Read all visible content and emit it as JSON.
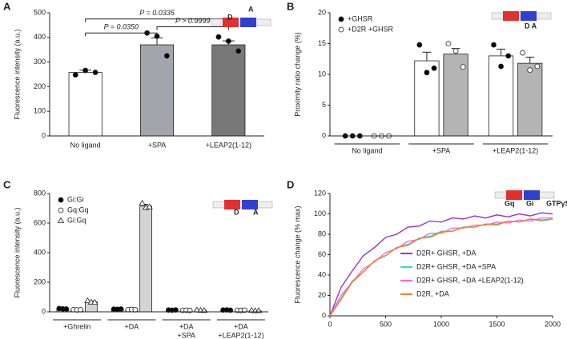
{
  "chart_data": [
    {
      "panel": "A",
      "type": "bar",
      "categories": [
        "No ligand",
        "+SPA",
        "+LEAP2(1-12)"
      ],
      "values": [
        258,
        370,
        370
      ],
      "errors": [
        9,
        28,
        16
      ],
      "points": [
        [
          248,
          266,
          258
        ],
        [
          418,
          405,
          325
        ],
        [
          402,
          385,
          345
        ]
      ],
      "colors": [
        "#ffffff",
        "#a4a4ac",
        "#787878"
      ],
      "marker_fill": "#000000",
      "ylabel": "Fluorescence intensity (a.u.)",
      "ylim": [
        0,
        500
      ],
      "yticks": [
        0,
        100,
        200,
        300,
        400,
        500
      ],
      "annotations": [
        "P = 0.0350",
        "P = 0.0335",
        "P > 0.9999"
      ],
      "inset_labels": [
        "D",
        "A"
      ]
    },
    {
      "panel": "B",
      "type": "bar",
      "categories": [
        "No ligand",
        "+SPA",
        "+LEAP2(1-12)"
      ],
      "series": [
        {
          "name": "+GHSR",
          "color": "#ffffff",
          "marker_fill": "#000000",
          "values": [
            0,
            12.2,
            13.0
          ],
          "errors": [
            0,
            1.4,
            1.1
          ],
          "points": [
            [
              0,
              0,
              0
            ],
            [
              14.8,
              10.3,
              11.0
            ],
            [
              14.8,
              11.3,
              13.0
            ]
          ]
        },
        {
          "name": "+D2R +GHSR",
          "color": "#b4b4b4",
          "marker_fill": "#ffffff",
          "values": [
            0,
            13.3,
            11.8
          ],
          "errors": [
            0,
            0.9,
            1.0
          ],
          "points": [
            [
              0,
              0,
              0
            ],
            [
              15.0,
              13.8,
              11.2
            ],
            [
              13.5,
              10.7,
              11.3
            ]
          ]
        }
      ],
      "ylabel": "Proximity ratio change (%)",
      "ylim": [
        0,
        20
      ],
      "yticks": [
        0,
        5,
        10,
        15,
        20
      ],
      "inset_labels": [
        "D A"
      ]
    },
    {
      "panel": "C",
      "type": "bar",
      "categories": [
        [
          "+Ghrelin"
        ],
        [
          "+DA"
        ],
        [
          "+DA",
          "+SPA"
        ],
        [
          "+DA",
          "+LEAP2(1-12)"
        ]
      ],
      "series": [
        {
          "name": "Gi:Gi",
          "color": "#ffffff",
          "marker": "circle",
          "marker_fill": "#000000",
          "values": [
            20,
            18,
            12,
            12
          ],
          "points": [
            [
              22,
              20,
              19
            ],
            [
              18,
              17,
              19
            ],
            [
              12,
              11,
              13
            ],
            [
              12,
              13,
              11
            ]
          ]
        },
        {
          "name": "Gq:Gq",
          "color": "#ffffff",
          "marker": "circle",
          "marker_fill": "#ffffff",
          "values": [
            14,
            15,
            10,
            10
          ],
          "points": [
            [
              15,
              13,
              14
            ],
            [
              15,
              16,
              14
            ],
            [
              10,
              11,
              9
            ],
            [
              10,
              9,
              11
            ]
          ]
        },
        {
          "name": "Gi:Gq",
          "color": "#d4d4d4",
          "marker": "triangle",
          "marker_fill": "#ffffff",
          "values": [
            68,
            715,
            10,
            8
          ],
          "errors": [
            5,
            12,
            2,
            2
          ],
          "points": [
            [
              75,
              66,
              64
            ],
            [
              735,
              705,
              710
            ],
            [
              12,
              10,
              9
            ],
            [
              10,
              7,
              8
            ]
          ]
        }
      ],
      "ylabel": "Fluorescence intensity (a.u.)",
      "ylim": [
        0,
        800
      ],
      "yticks": [
        0,
        200,
        400,
        600,
        800
      ],
      "inset_labels": [
        "D",
        "A"
      ]
    },
    {
      "panel": "D",
      "type": "line",
      "x": [
        0,
        100,
        200,
        300,
        400,
        500,
        600,
        700,
        800,
        900,
        1000,
        1100,
        1200,
        1300,
        1400,
        1500,
        1600,
        1700,
        1800,
        1900,
        2000
      ],
      "series": [
        {
          "name": "D2R+ GHSR, +DA",
          "color": "#9933cc",
          "values": [
            0,
            28,
            44,
            59,
            67,
            77,
            80,
            87,
            88,
            93,
            92,
            96,
            95,
            98,
            96,
            99,
            97,
            100,
            98,
            101,
            100
          ]
        },
        {
          "name": "D2R+ GHSR, +DA +SPA",
          "color": "#33e0b0",
          "values": [
            0,
            17,
            34,
            43,
            54,
            59,
            67,
            70,
            76,
            78,
            83,
            83,
            87,
            87,
            90,
            90,
            93,
            92,
            95,
            93,
            95
          ]
        },
        {
          "name": "D2R+ GHSR, +DA +LEAP2(1-12)",
          "color": "#ff66dd",
          "values": [
            0,
            20,
            33,
            46,
            53,
            62,
            66,
            73,
            75,
            81,
            81,
            86,
            86,
            89,
            89,
            92,
            91,
            94,
            93,
            96,
            96
          ]
        },
        {
          "name": "D2R, +DA",
          "color": "#f08030",
          "values": [
            0,
            16,
            33,
            43,
            54,
            59,
            67,
            69,
            76,
            77,
            82,
            83,
            87,
            87,
            90,
            89,
            93,
            92,
            95,
            94,
            95
          ]
        }
      ],
      "ylabel": "Fluorescence change (% max)",
      "xlim": [
        0,
        2000
      ],
      "xticks": [
        0,
        500,
        1000,
        1500,
        2000
      ],
      "ylim": [
        0,
        120
      ],
      "yticks": [
        0,
        20,
        40,
        60,
        80,
        100,
        120
      ],
      "inset_labels": [
        "Gq",
        "Gi",
        "GTPγS"
      ]
    }
  ]
}
